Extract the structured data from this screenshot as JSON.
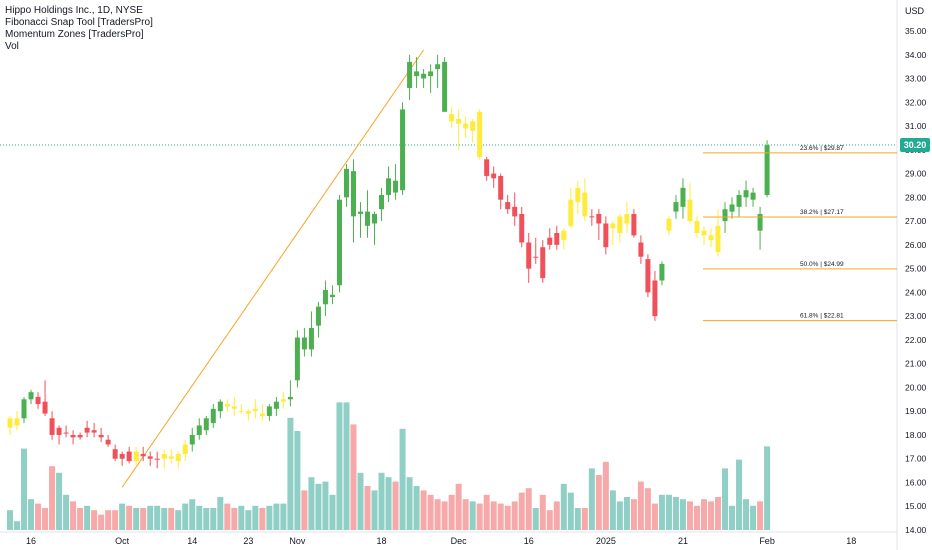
{
  "header": {
    "title": "Hippo Holdings Inc., 1D, NYSE",
    "indicators": [
      "Fibonacci Snap Tool [TradersPro]",
      "Momentum Zones [TradersPro]",
      "Vol"
    ],
    "currency": "USD"
  },
  "last_price_tag": "30.20",
  "colors": {
    "bull": "#4caf50",
    "bear": "#f0505a",
    "neutral": "#ffeb3b",
    "vol_bull": "#8fcfc6",
    "vol_bear": "#f7a8a8",
    "fib": "#f5a623",
    "price_line": "#22ab94"
  },
  "chart_data": {
    "type": "candlestick",
    "ylim": [
      14.0,
      35.5
    ],
    "y_ticks": [
      "35.00",
      "34.00",
      "33.00",
      "32.00",
      "31.00",
      "30.00",
      "29.00",
      "28.00",
      "27.00",
      "26.00",
      "25.00",
      "24.00",
      "23.00",
      "22.00",
      "21.00",
      "20.00",
      "19.00",
      "18.00",
      "17.00",
      "16.00",
      "15.00",
      "14.00"
    ],
    "x_ticks": [
      "16",
      "Oct",
      "14",
      "23",
      "Nov",
      "18",
      "Dec",
      "16",
      "2025",
      "21",
      "Feb",
      "18"
    ],
    "x_tick_bar_index": [
      3,
      16,
      26,
      34,
      41,
      53,
      64,
      74,
      85,
      96,
      108,
      120
    ],
    "last_price": 30.2,
    "candles": [
      {
        "o": 18.3,
        "h": 18.8,
        "l": 18.0,
        "c": 18.7,
        "m": "neutral",
        "v": 0.9
      },
      {
        "o": 18.4,
        "h": 19.0,
        "l": 18.2,
        "c": 18.7,
        "m": "neutral",
        "v": 0.4
      },
      {
        "o": 18.7,
        "h": 19.6,
        "l": 18.5,
        "c": 19.5,
        "m": "bull",
        "v": 3.7
      },
      {
        "o": 19.5,
        "h": 19.9,
        "l": 19.3,
        "c": 19.8,
        "m": "bull",
        "v": 1.4
      },
      {
        "o": 19.6,
        "h": 19.8,
        "l": 19.1,
        "c": 19.3,
        "m": "bear",
        "v": 1.2
      },
      {
        "o": 19.4,
        "h": 20.3,
        "l": 18.8,
        "c": 18.9,
        "m": "bear",
        "v": 1.0
      },
      {
        "o": 18.7,
        "h": 19.0,
        "l": 17.8,
        "c": 18.0,
        "m": "bear",
        "v": 2.9
      },
      {
        "o": 18.0,
        "h": 18.4,
        "l": 17.6,
        "c": 18.3,
        "m": "bear",
        "v": 2.6
      },
      {
        "o": 18.1,
        "h": 18.4,
        "l": 17.9,
        "c": 18.1,
        "m": "bear",
        "v": 1.6
      },
      {
        "o": 18.0,
        "h": 18.2,
        "l": 17.6,
        "c": 17.9,
        "m": "bear",
        "v": 1.3
      },
      {
        "o": 18.0,
        "h": 18.1,
        "l": 17.8,
        "c": 17.9,
        "m": "bear",
        "v": 1.0
      },
      {
        "o": 18.1,
        "h": 18.6,
        "l": 17.9,
        "c": 18.3,
        "m": "bear",
        "v": 1.1
      },
      {
        "o": 18.2,
        "h": 18.5,
        "l": 17.9,
        "c": 18.1,
        "m": "bear",
        "v": 0.9
      },
      {
        "o": 18.0,
        "h": 18.3,
        "l": 17.7,
        "c": 17.9,
        "m": "bear",
        "v": 0.7
      },
      {
        "o": 17.8,
        "h": 18.0,
        "l": 17.5,
        "c": 17.6,
        "m": "bear",
        "v": 0.9
      },
      {
        "o": 17.4,
        "h": 17.6,
        "l": 16.9,
        "c": 17.0,
        "m": "bear",
        "v": 0.9
      },
      {
        "o": 17.0,
        "h": 17.3,
        "l": 16.7,
        "c": 17.2,
        "m": "bear",
        "v": 1.2
      },
      {
        "o": 17.3,
        "h": 17.5,
        "l": 16.8,
        "c": 16.9,
        "m": "bear",
        "v": 1.1
      },
      {
        "o": 16.9,
        "h": 17.5,
        "l": 16.7,
        "c": 17.3,
        "m": "neutral",
        "v": 1.0
      },
      {
        "o": 17.2,
        "h": 17.5,
        "l": 16.9,
        "c": 17.1,
        "m": "bear",
        "v": 1.0
      },
      {
        "o": 17.0,
        "h": 17.3,
        "l": 16.7,
        "c": 17.1,
        "m": "bear",
        "v": 1.1
      },
      {
        "o": 17.0,
        "h": 17.3,
        "l": 16.6,
        "c": 17.0,
        "m": "bear",
        "v": 1.1
      },
      {
        "o": 17.0,
        "h": 17.4,
        "l": 16.6,
        "c": 17.2,
        "m": "neutral",
        "v": 1.0
      },
      {
        "o": 17.1,
        "h": 17.4,
        "l": 16.8,
        "c": 17.0,
        "m": "neutral",
        "v": 1.0
      },
      {
        "o": 16.9,
        "h": 17.3,
        "l": 16.6,
        "c": 17.2,
        "m": "neutral",
        "v": 0.9
      },
      {
        "o": 17.2,
        "h": 17.8,
        "l": 16.9,
        "c": 17.6,
        "m": "neutral",
        "v": 1.2
      },
      {
        "o": 17.6,
        "h": 18.3,
        "l": 17.3,
        "c": 18.0,
        "m": "bull",
        "v": 1.4
      },
      {
        "o": 18.0,
        "h": 18.7,
        "l": 17.8,
        "c": 18.4,
        "m": "bull",
        "v": 1.1
      },
      {
        "o": 18.2,
        "h": 18.8,
        "l": 18.0,
        "c": 18.7,
        "m": "bull",
        "v": 1.0
      },
      {
        "o": 18.5,
        "h": 19.3,
        "l": 18.3,
        "c": 19.1,
        "m": "bull",
        "v": 1.0
      },
      {
        "o": 19.0,
        "h": 19.5,
        "l": 18.7,
        "c": 19.4,
        "m": "bull",
        "v": 1.5
      },
      {
        "o": 19.3,
        "h": 19.5,
        "l": 19.0,
        "c": 19.2,
        "m": "neutral",
        "v": 1.2
      },
      {
        "o": 19.2,
        "h": 19.6,
        "l": 18.8,
        "c": 19.1,
        "m": "neutral",
        "v": 1.0
      },
      {
        "o": 19.0,
        "h": 19.3,
        "l": 18.9,
        "c": 19.0,
        "m": "neutral",
        "v": 1.1
      },
      {
        "o": 18.9,
        "h": 19.1,
        "l": 18.6,
        "c": 19.0,
        "m": "neutral",
        "v": 0.9
      },
      {
        "o": 19.0,
        "h": 19.5,
        "l": 18.7,
        "c": 19.1,
        "m": "neutral",
        "v": 1.1
      },
      {
        "o": 18.9,
        "h": 19.3,
        "l": 18.6,
        "c": 18.8,
        "m": "neutral",
        "v": 1.0
      },
      {
        "o": 18.8,
        "h": 19.3,
        "l": 18.6,
        "c": 19.2,
        "m": "bull",
        "v": 1.1
      },
      {
        "o": 19.1,
        "h": 19.6,
        "l": 18.8,
        "c": 19.4,
        "m": "bull",
        "v": 1.2
      },
      {
        "o": 19.4,
        "h": 19.8,
        "l": 19.1,
        "c": 19.5,
        "m": "neutral",
        "v": 1.2
      },
      {
        "o": 19.5,
        "h": 20.3,
        "l": 19.2,
        "c": 19.6,
        "m": "bull",
        "v": 5.1
      },
      {
        "o": 20.3,
        "h": 22.4,
        "l": 20.0,
        "c": 22.1,
        "m": "bull",
        "v": 4.5
      },
      {
        "o": 22.1,
        "h": 22.5,
        "l": 21.3,
        "c": 21.6,
        "m": "bull",
        "v": 1.8
      },
      {
        "o": 21.6,
        "h": 23.2,
        "l": 21.3,
        "c": 22.5,
        "m": "bull",
        "v": 2.4
      },
      {
        "o": 22.6,
        "h": 23.6,
        "l": 22.1,
        "c": 23.4,
        "m": "bull",
        "v": 2.1
      },
      {
        "o": 23.5,
        "h": 24.5,
        "l": 23.0,
        "c": 24.1,
        "m": "bull",
        "v": 2.2
      },
      {
        "o": 23.8,
        "h": 24.3,
        "l": 23.5,
        "c": 23.9,
        "m": "bull",
        "v": 1.6
      },
      {
        "o": 24.3,
        "h": 28.1,
        "l": 24.0,
        "c": 27.9,
        "m": "bull",
        "v": 5.8
      },
      {
        "o": 28.0,
        "h": 29.4,
        "l": 27.6,
        "c": 29.2,
        "m": "bull",
        "v": 5.8
      },
      {
        "o": 29.1,
        "h": 29.6,
        "l": 26.1,
        "c": 27.2,
        "m": "bull",
        "v": 4.8
      },
      {
        "o": 27.3,
        "h": 27.8,
        "l": 26.3,
        "c": 27.4,
        "m": "bull",
        "v": 2.6
      },
      {
        "o": 27.4,
        "h": 28.3,
        "l": 26.3,
        "c": 26.8,
        "m": "bull",
        "v": 2.0
      },
      {
        "o": 26.9,
        "h": 27.4,
        "l": 26.0,
        "c": 27.3,
        "m": "bull",
        "v": 1.8
      },
      {
        "o": 27.5,
        "h": 28.4,
        "l": 27.0,
        "c": 28.1,
        "m": "bull",
        "v": 2.6
      },
      {
        "o": 28.1,
        "h": 29.3,
        "l": 27.8,
        "c": 28.8,
        "m": "bull",
        "v": 2.4
      },
      {
        "o": 28.7,
        "h": 29.4,
        "l": 27.9,
        "c": 28.2,
        "m": "bull",
        "v": 2.2
      },
      {
        "o": 28.3,
        "h": 32.0,
        "l": 28.1,
        "c": 31.7,
        "m": "bull",
        "v": 4.6
      },
      {
        "o": 32.6,
        "h": 34.0,
        "l": 32.1,
        "c": 33.7,
        "m": "bull",
        "v": 2.4
      },
      {
        "o": 33.1,
        "h": 33.9,
        "l": 32.6,
        "c": 33.3,
        "m": "bull",
        "v": 2.0
      },
      {
        "o": 33.2,
        "h": 33.4,
        "l": 32.6,
        "c": 33.0,
        "m": "bull",
        "v": 1.8
      },
      {
        "o": 33.3,
        "h": 33.6,
        "l": 32.4,
        "c": 33.1,
        "m": "bull",
        "v": 1.6
      },
      {
        "o": 33.6,
        "h": 34.0,
        "l": 32.6,
        "c": 33.4,
        "m": "bull",
        "v": 1.4
      },
      {
        "o": 33.7,
        "h": 33.9,
        "l": 31.6,
        "c": 31.6,
        "m": "bull",
        "v": 1.3
      },
      {
        "o": 31.5,
        "h": 31.8,
        "l": 30.9,
        "c": 31.2,
        "m": "neutral",
        "v": 1.6
      },
      {
        "o": 31.3,
        "h": 31.7,
        "l": 30.0,
        "c": 31.1,
        "m": "neutral",
        "v": 2.1
      },
      {
        "o": 31.1,
        "h": 31.4,
        "l": 30.5,
        "c": 30.9,
        "m": "neutral",
        "v": 1.4
      },
      {
        "o": 30.8,
        "h": 31.3,
        "l": 30.3,
        "c": 31.2,
        "m": "neutral",
        "v": 1.3
      },
      {
        "o": 31.6,
        "h": 31.7,
        "l": 29.6,
        "c": 29.7,
        "m": "neutral",
        "v": 1.2
      },
      {
        "o": 29.6,
        "h": 29.7,
        "l": 28.7,
        "c": 28.9,
        "m": "bear",
        "v": 1.6
      },
      {
        "o": 29.0,
        "h": 29.3,
        "l": 28.4,
        "c": 28.8,
        "m": "bear",
        "v": 1.3
      },
      {
        "o": 28.9,
        "h": 29.0,
        "l": 27.5,
        "c": 27.9,
        "m": "bear",
        "v": 1.2
      },
      {
        "o": 27.8,
        "h": 28.1,
        "l": 27.3,
        "c": 27.5,
        "m": "bear",
        "v": 1.1
      },
      {
        "o": 27.6,
        "h": 28.2,
        "l": 26.8,
        "c": 27.2,
        "m": "bear",
        "v": 1.3
      },
      {
        "o": 27.3,
        "h": 27.6,
        "l": 25.9,
        "c": 26.1,
        "m": "bear",
        "v": 1.7
      },
      {
        "o": 26.1,
        "h": 26.5,
        "l": 24.4,
        "c": 25.0,
        "m": "bear",
        "v": 1.9
      },
      {
        "o": 25.5,
        "h": 26.3,
        "l": 25.2,
        "c": 25.5,
        "m": "bear",
        "v": 1.0
      },
      {
        "o": 25.9,
        "h": 26.2,
        "l": 24.4,
        "c": 24.6,
        "m": "bear",
        "v": 1.6
      },
      {
        "o": 26.3,
        "h": 26.7,
        "l": 25.8,
        "c": 26.0,
        "m": "bear",
        "v": 0.9
      },
      {
        "o": 26.5,
        "h": 26.8,
        "l": 25.8,
        "c": 26.0,
        "m": "bear",
        "v": 1.3
      },
      {
        "o": 26.2,
        "h": 26.7,
        "l": 25.8,
        "c": 26.6,
        "m": "neutral",
        "v": 2.1
      },
      {
        "o": 26.8,
        "h": 28.4,
        "l": 26.7,
        "c": 27.9,
        "m": "neutral",
        "v": 1.7
      },
      {
        "o": 27.8,
        "h": 28.7,
        "l": 27.3,
        "c": 28.4,
        "m": "neutral",
        "v": 1.0
      },
      {
        "o": 28.2,
        "h": 28.8,
        "l": 27.0,
        "c": 27.2,
        "m": "neutral",
        "v": 1.0
      },
      {
        "o": 27.2,
        "h": 27.5,
        "l": 26.8,
        "c": 27.2,
        "m": "bear",
        "v": 2.8
      },
      {
        "o": 27.3,
        "h": 27.5,
        "l": 26.2,
        "c": 26.9,
        "m": "bear",
        "v": 2.5
      },
      {
        "o": 26.9,
        "h": 27.2,
        "l": 25.6,
        "c": 25.9,
        "m": "bear",
        "v": 3.1
      },
      {
        "o": 26.7,
        "h": 27.0,
        "l": 26.0,
        "c": 26.9,
        "m": "neutral",
        "v": 1.8
      },
      {
        "o": 26.5,
        "h": 27.3,
        "l": 26.1,
        "c": 27.2,
        "m": "neutral",
        "v": 1.3
      },
      {
        "o": 26.9,
        "h": 27.8,
        "l": 26.5,
        "c": 27.3,
        "m": "neutral",
        "v": 1.5
      },
      {
        "o": 27.3,
        "h": 27.5,
        "l": 26.3,
        "c": 26.4,
        "m": "bear",
        "v": 1.4
      },
      {
        "o": 26.1,
        "h": 26.4,
        "l": 25.2,
        "c": 25.5,
        "m": "bear",
        "v": 2.2
      },
      {
        "o": 25.4,
        "h": 25.6,
        "l": 23.8,
        "c": 24.0,
        "m": "bear",
        "v": 1.9
      },
      {
        "o": 24.5,
        "h": 24.9,
        "l": 22.8,
        "c": 23.0,
        "m": "bear",
        "v": 1.2
      },
      {
        "o": 24.5,
        "h": 25.3,
        "l": 24.3,
        "c": 25.2,
        "m": "bull",
        "v": 1.6
      },
      {
        "o": 26.6,
        "h": 27.2,
        "l": 26.4,
        "c": 27.1,
        "m": "neutral",
        "v": 1.6
      },
      {
        "o": 27.4,
        "h": 28.1,
        "l": 27.1,
        "c": 27.8,
        "m": "bull",
        "v": 1.5
      },
      {
        "o": 27.6,
        "h": 28.8,
        "l": 27.1,
        "c": 28.4,
        "m": "bull",
        "v": 1.4
      },
      {
        "o": 27.9,
        "h": 28.6,
        "l": 26.9,
        "c": 27.0,
        "m": "neutral",
        "v": 1.3
      },
      {
        "o": 27.0,
        "h": 27.2,
        "l": 26.3,
        "c": 26.5,
        "m": "neutral",
        "v": 1.1
      },
      {
        "o": 26.6,
        "h": 26.8,
        "l": 26.0,
        "c": 26.4,
        "m": "neutral",
        "v": 1.4
      },
      {
        "o": 26.4,
        "h": 26.7,
        "l": 25.9,
        "c": 26.2,
        "m": "neutral",
        "v": 1.3
      },
      {
        "o": 26.8,
        "h": 27.5,
        "l": 25.5,
        "c": 25.7,
        "m": "neutral",
        "v": 1.5
      },
      {
        "o": 27.0,
        "h": 27.8,
        "l": 26.5,
        "c": 27.5,
        "m": "bull",
        "v": 2.8
      },
      {
        "o": 27.4,
        "h": 28.0,
        "l": 27.1,
        "c": 27.7,
        "m": "bull",
        "v": 1.1
      },
      {
        "o": 27.6,
        "h": 28.3,
        "l": 27.2,
        "c": 28.1,
        "m": "bull",
        "v": 3.2
      },
      {
        "o": 28.0,
        "h": 28.7,
        "l": 27.6,
        "c": 28.3,
        "m": "bull",
        "v": 1.4
      },
      {
        "o": 27.9,
        "h": 28.4,
        "l": 27.6,
        "c": 28.2,
        "m": "bull",
        "v": 1.1
      },
      {
        "o": 27.3,
        "h": 27.6,
        "l": 25.8,
        "c": 26.6,
        "m": "bull",
        "v": 1.3
      },
      {
        "o": 28.1,
        "h": 30.4,
        "l": 28.0,
        "c": 30.2,
        "m": "bull",
        "v": 3.8
      }
    ],
    "fibonacci": {
      "levels": [
        {
          "label": "23.6% | $29.87",
          "price": 29.87
        },
        {
          "label": "38.2% | $27.17",
          "price": 27.17
        },
        {
          "label": "50.0% | $24.99",
          "price": 24.99
        },
        {
          "label": "61.8% | $22.81",
          "price": 22.81
        }
      ],
      "swing_low": {
        "bar": 16,
        "price": 15.8
      },
      "swing_high": {
        "bar": 59,
        "price": 34.2
      }
    }
  }
}
